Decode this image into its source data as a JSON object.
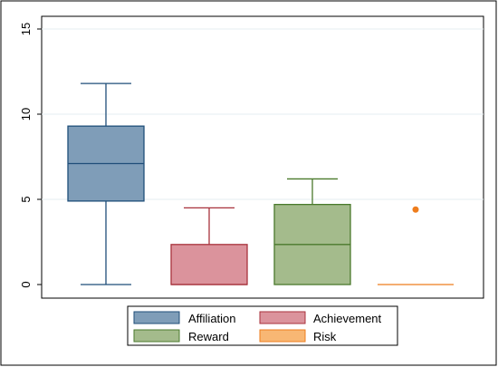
{
  "chart_data": {
    "type": "box",
    "ylim": [
      0,
      15
    ],
    "yticks": [
      "0",
      "5",
      "10",
      "15"
    ],
    "grid": true,
    "legend_position": "bottom",
    "series": [
      {
        "name": "Affiliation",
        "color": "#7f9db8",
        "stroke": "#1f4e79",
        "min": 0,
        "q1": 4.9,
        "median": 7.1,
        "q3": 9.3,
        "max": 11.8,
        "outliers": []
      },
      {
        "name": "Achievement",
        "color": "#db939c",
        "stroke": "#a8323c",
        "min": 0,
        "q1": 0,
        "median": 0,
        "q3": 2.35,
        "max": 4.5,
        "outliers": []
      },
      {
        "name": "Reward",
        "color": "#a4bb8c",
        "stroke": "#4a7a2c",
        "min": 0,
        "q1": 0,
        "median": 2.35,
        "q3": 4.7,
        "max": 6.2,
        "outliers": []
      },
      {
        "name": "Risk",
        "color": "#f8b774",
        "stroke": "#ee7d1d",
        "min": 0,
        "q1": 0,
        "median": 0,
        "q3": 0,
        "max": 0,
        "outliers": [
          4.4
        ]
      }
    ]
  }
}
